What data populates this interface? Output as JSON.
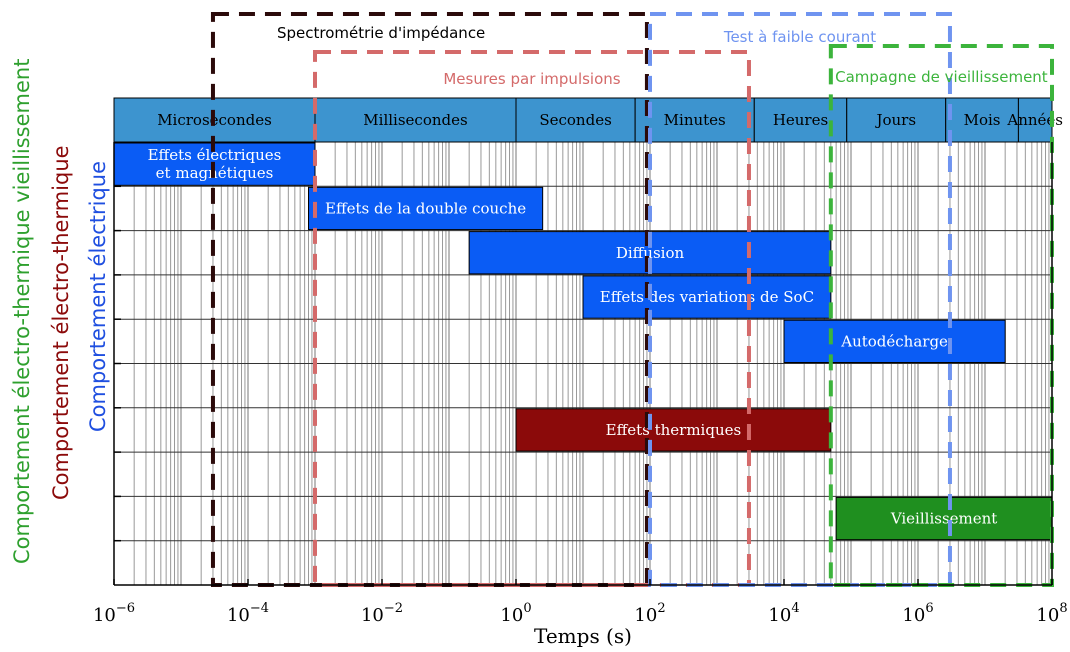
{
  "chart_data": {
    "type": "gantt-timescale",
    "xlabel": "Temps (s)",
    "xscale": "log",
    "xlim": [
      1e-06,
      100000000.0
    ],
    "x_tick_labels": [
      {
        "value": 1e-06,
        "base": "10",
        "exp": "−6"
      },
      {
        "value": 0.0001,
        "base": "10",
        "exp": "−4"
      },
      {
        "value": 0.01,
        "base": "10",
        "exp": "−2"
      },
      {
        "value": 1.0,
        "base": "10",
        "exp": "0"
      },
      {
        "value": 100.0,
        "base": "10",
        "exp": "2"
      },
      {
        "value": 10000.0,
        "base": "10",
        "exp": "4"
      },
      {
        "value": 1000000.0,
        "base": "10",
        "exp": "6"
      },
      {
        "value": 100000000.0,
        "base": "10",
        "exp": "8"
      }
    ],
    "grid": true,
    "time_units": [
      {
        "label": "Microsecondes",
        "start": 1e-06,
        "end": 0.001
      },
      {
        "label": "Millisecondes",
        "start": 0.001,
        "end": 1
      },
      {
        "label": "Secondes",
        "start": 1,
        "end": 60
      },
      {
        "label": "Minutes",
        "start": 60,
        "end": 3600
      },
      {
        "label": "Heures",
        "start": 3600,
        "end": 86400
      },
      {
        "label": "Jours",
        "start": 86400,
        "end": 2592000
      },
      {
        "label": "Mois",
        "start": 2592000,
        "end": 31536000
      },
      {
        "label": "Années",
        "start": 31536000,
        "end": 100000000.0
      }
    ],
    "phenomena": [
      {
        "label": [
          "Effets électriques",
          "et magnétiques"
        ],
        "start": 1e-06,
        "end": 0.001,
        "row": 0,
        "color": "#0a5cf5"
      },
      {
        "label": [
          "Effets de la double couche"
        ],
        "start": 0.0008,
        "end": 2.5,
        "row": 1,
        "color": "#0a5cf5"
      },
      {
        "label": [
          "Diffusion"
        ],
        "start": 0.2,
        "end": 50000.0,
        "row": 2,
        "color": "#0a5cf5"
      },
      {
        "label": [
          "Effets des variations de SoC"
        ],
        "start": 10,
        "end": 50000.0,
        "row": 3,
        "color": "#0a5cf5"
      },
      {
        "label": [
          "Autodécharge"
        ],
        "start": 10000.0,
        "end": 20000000.0,
        "row": 4,
        "color": "#0a5cf5"
      },
      {
        "label": [
          "Effets thermiques"
        ],
        "start": 1,
        "end": 50000.0,
        "row": 6,
        "color": "#8b0a0a"
      },
      {
        "label": [
          "Vieillissement"
        ],
        "start": 60000.0,
        "end": 100000000.0,
        "row": 8,
        "color": "#1f8f1f"
      }
    ],
    "methods": [
      {
        "label": "Spectrométrie d'impédance",
        "start": 3e-05,
        "end": 90,
        "color": "#2b0a0a"
      },
      {
        "label": "Mesures par impulsions",
        "start": 0.001,
        "end": 3000,
        "color": "#d46a6a"
      },
      {
        "label": "Test à faible courant",
        "start": 100,
        "end": 3000000.0,
        "color": "#6f94f0"
      },
      {
        "label": "Campagne de vieillissement",
        "start": 50000.0,
        "end": 100000000.0,
        "color": "#3cb43c"
      }
    ],
    "behaviours": [
      {
        "label": "Comportement électrique",
        "color": "#1f4fe0"
      },
      {
        "label": "Comportement électro-thermique",
        "color": "#8b0a0a"
      },
      {
        "label": "Comportement électro-thermique vieillissement",
        "color": "#2ea02e"
      }
    ]
  }
}
